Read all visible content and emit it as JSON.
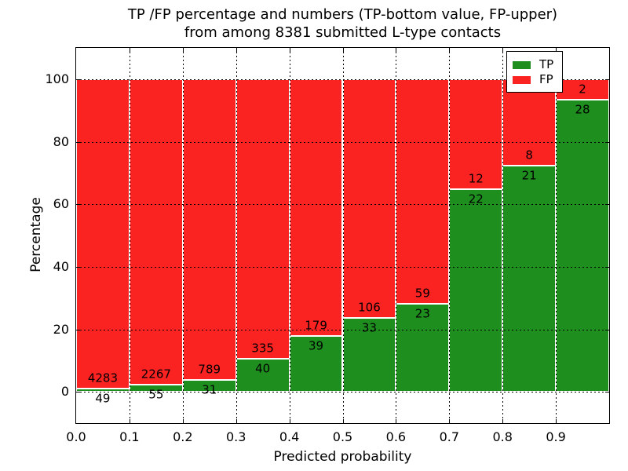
{
  "title": {
    "line1": "TP /FP percentage and numbers (TP-bottom value, FP-upper)",
    "line2": "from among 8381 submitted L-type contacts"
  },
  "axes": {
    "x": {
      "label": "Predicted probability",
      "tick_labels": [
        "0.0",
        "0.1",
        "0.2",
        "0.3",
        "0.4",
        "0.5",
        "0.6",
        "0.7",
        "0.8",
        "0.9"
      ],
      "range": [
        0.0,
        1.0
      ]
    },
    "y": {
      "label": "Percentage",
      "tick_labels": [
        "0",
        "20",
        "40",
        "60",
        "80",
        "100"
      ],
      "range": [
        -10,
        110
      ]
    }
  },
  "legend": {
    "position": "upper right",
    "items": [
      {
        "label": "TP",
        "color": "#1e8e1e"
      },
      {
        "label": "FP",
        "color": "#fb2222"
      }
    ]
  },
  "chart_data": {
    "type": "bar",
    "stacked": true,
    "normalized": "percent of each bin (TP+FP = 100%)",
    "title": "TP /FP percentage and numbers (TP-bottom value, FP-upper) from among 8381 submitted L-type contacts",
    "xlabel": "Predicted probability",
    "ylabel": "Percentage",
    "xlim": [
      0.0,
      1.0
    ],
    "ylim": [
      -10,
      110
    ],
    "grid": "dotted black, both axes, drawn over bars",
    "legend_position": "upper right",
    "total_contacts": 8381,
    "categories": [
      "0.0-0.1",
      "0.1-0.2",
      "0.2-0.3",
      "0.3-0.4",
      "0.4-0.5",
      "0.5-0.6",
      "0.6-0.7",
      "0.7-0.8",
      "0.8-0.9",
      "0.9-1.0"
    ],
    "bin_starts": [
      0.0,
      0.1,
      0.2,
      0.3,
      0.4,
      0.5,
      0.6,
      0.7,
      0.8,
      0.9
    ],
    "series": [
      {
        "name": "TP",
        "color": "#1e8e1e",
        "counts": [
          49,
          55,
          31,
          40,
          39,
          33,
          23,
          22,
          21,
          28
        ]
      },
      {
        "name": "FP",
        "color": "#fb2222",
        "counts": [
          4283,
          2267,
          789,
          335,
          179,
          106,
          59,
          12,
          8,
          2
        ]
      }
    ],
    "tp_percent": [
      1.13,
      2.37,
      3.78,
      10.67,
      17.89,
      23.74,
      28.05,
      64.71,
      72.41,
      93.33
    ]
  }
}
